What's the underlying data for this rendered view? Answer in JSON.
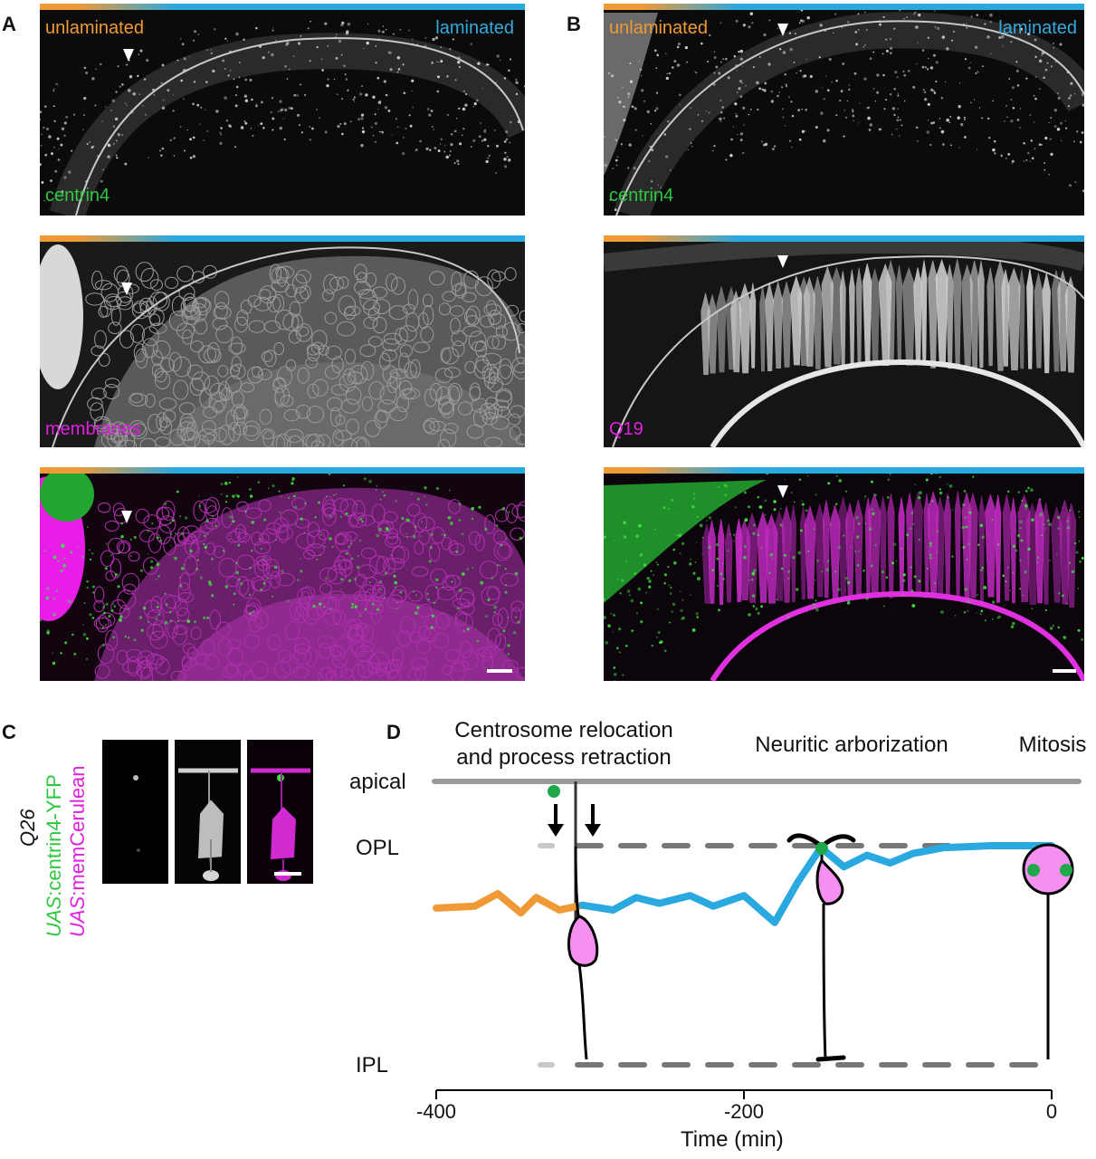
{
  "panels": {
    "A": {
      "letter": "A",
      "gradient_left": "unlaminated",
      "gradient_right": "laminated",
      "channel_1": "centrin4",
      "channel_2": "membranes"
    },
    "B": {
      "letter": "B",
      "gradient_left": "unlaminated",
      "gradient_right": "laminated",
      "channel_1": "centrin4",
      "channel_2": "Q19"
    },
    "C": {
      "letter": "C",
      "line": "Q26",
      "label_1_prefix": "UAS",
      "label_1_suffix": ":centrin4-YFP",
      "label_2_prefix": "UAS",
      "label_2_suffix": ":memCerulean"
    },
    "D": {
      "letter": "D",
      "phase_1_line1": "Centrosome relocation",
      "phase_1_line2": "and process retraction",
      "phase_2": "Neuritic arborization",
      "phase_3": "Mitosis",
      "layer_apical": "apical",
      "layer_opl": "OPL",
      "layer_ipl": "IPL"
    }
  },
  "colors": {
    "unlaminated": "#ef9a36",
    "laminated": "#2aa8e0",
    "centrin": "#2ec840",
    "membrane": "#e020e0",
    "cell_fill": "#f58ff0"
  },
  "chart_data": {
    "type": "line",
    "xlabel": "Time (min)",
    "xlim": [
      -400,
      0
    ],
    "xticks": [
      -400,
      -200,
      0
    ],
    "xtick_labels": [
      "-400",
      "-200",
      "0"
    ],
    "series": [
      {
        "color": "#ef9a36",
        "x": [
          -400,
          -375,
          -360,
          -345,
          -335,
          -320,
          -305
        ],
        "y": [
          0.35,
          0.37,
          0.5,
          0.3,
          0.46,
          0.33,
          0.38
        ]
      },
      {
        "color": "#2aa8e0",
        "x": [
          -305,
          -285,
          -270,
          -255,
          -235,
          -220,
          -200,
          -180,
          -165,
          -150,
          -135,
          -120,
          -105,
          -90,
          -70,
          -55,
          -40,
          -20,
          0
        ],
        "y": [
          0.38,
          0.33,
          0.46,
          0.4,
          0.48,
          0.37,
          0.48,
          0.2,
          0.62,
          0.98,
          0.78,
          0.9,
          0.82,
          0.92,
          0.98,
          0.99,
          1.0,
          1.0,
          1.0
        ]
      }
    ]
  }
}
